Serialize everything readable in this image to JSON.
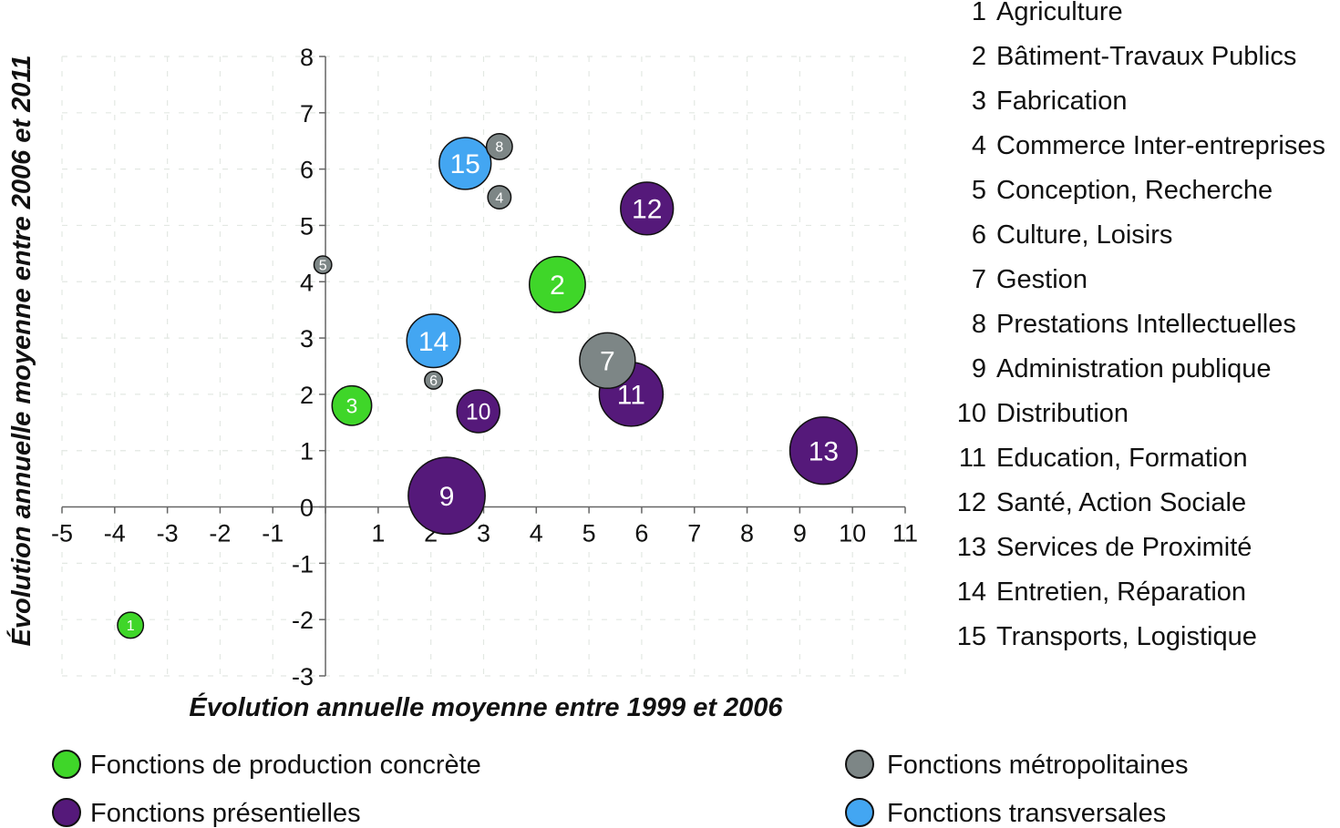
{
  "chart_data": {
    "type": "bubble",
    "title": "",
    "xlabel": "Évolution annuelle moyenne entre 1999 et 2006",
    "ylabel": "Évolution annuelle moyenne entre 2006 et 2011",
    "xlim": [
      -5,
      11
    ],
    "ylim": [
      -3,
      8
    ],
    "x_ticks": [
      -5,
      -4,
      -3,
      -2,
      -1,
      0,
      1,
      2,
      3,
      4,
      5,
      6,
      7,
      8,
      9,
      10,
      11
    ],
    "y_ticks": [
      -3,
      -2,
      -1,
      0,
      1,
      2,
      3,
      4,
      5,
      6,
      7,
      8
    ],
    "grid": true,
    "groups": [
      {
        "key": "production",
        "name": "Fonctions de production concrète",
        "color": "#3fd629"
      },
      {
        "key": "metropolitaines",
        "name": "Fonctions métropolitaines",
        "color": "#7d8686"
      },
      {
        "key": "presentielles",
        "name": "Fonctions présentielles",
        "color": "#55197a"
      },
      {
        "key": "transversales",
        "name": "Fonctions transversales",
        "color": "#43a6f2"
      }
    ],
    "points": [
      {
        "id": "1",
        "name": "Agriculture",
        "group": "production",
        "x": -3.7,
        "y": -2.1,
        "size": 1.5
      },
      {
        "id": "2",
        "name": "Bâtiment-Travaux Publics",
        "group": "production",
        "x": 4.4,
        "y": 3.95,
        "size": 7.0
      },
      {
        "id": "3",
        "name": "Fabrication",
        "group": "production",
        "x": 0.5,
        "y": 1.8,
        "size": 3.5
      },
      {
        "id": "4",
        "name": "Commerce Inter-entreprises",
        "group": "metropolitaines",
        "x": 3.3,
        "y": 5.5,
        "size": 1.2
      },
      {
        "id": "5",
        "name": "Conception, Recherche",
        "group": "metropolitaines",
        "x": -0.05,
        "y": 4.3,
        "size": 0.7
      },
      {
        "id": "6",
        "name": "Culture, Loisirs",
        "group": "metropolitaines",
        "x": 2.05,
        "y": 2.25,
        "size": 0.7
      },
      {
        "id": "7",
        "name": "Gestion",
        "group": "metropolitaines",
        "x": 5.35,
        "y": 2.6,
        "size": 6.9
      },
      {
        "id": "8",
        "name": "Prestations Intellectuelles",
        "group": "metropolitaines",
        "x": 3.3,
        "y": 6.4,
        "size": 1.5
      },
      {
        "id": "9",
        "name": "Administration publique",
        "group": "presentielles",
        "x": 2.3,
        "y": 0.2,
        "size": 13.2
      },
      {
        "id": "10",
        "name": "Distribution",
        "group": "presentielles",
        "x": 2.9,
        "y": 1.7,
        "size": 4.1
      },
      {
        "id": "11",
        "name": "Education, Formation",
        "group": "presentielles",
        "x": 5.8,
        "y": 2.0,
        "size": 9.1
      },
      {
        "id": "12",
        "name": "Santé, Action Sociale",
        "group": "presentielles",
        "x": 6.1,
        "y": 5.3,
        "size": 6.2
      },
      {
        "id": "13",
        "name": "Services de Proximité",
        "group": "presentielles",
        "x": 9.45,
        "y": 1.0,
        "size": 10.1
      },
      {
        "id": "14",
        "name": "Entretien, Réparation",
        "group": "transversales",
        "x": 2.05,
        "y": 2.95,
        "size": 6.4
      },
      {
        "id": "15",
        "name": "Transports, Logistique",
        "group": "transversales",
        "x": 2.65,
        "y": 6.1,
        "size": 6.0
      }
    ]
  },
  "legend_items": [
    "Fonctions de production concrète",
    "Fonctions métropolitaines",
    "Fonctions présentielles",
    "Fonctions transversales"
  ]
}
